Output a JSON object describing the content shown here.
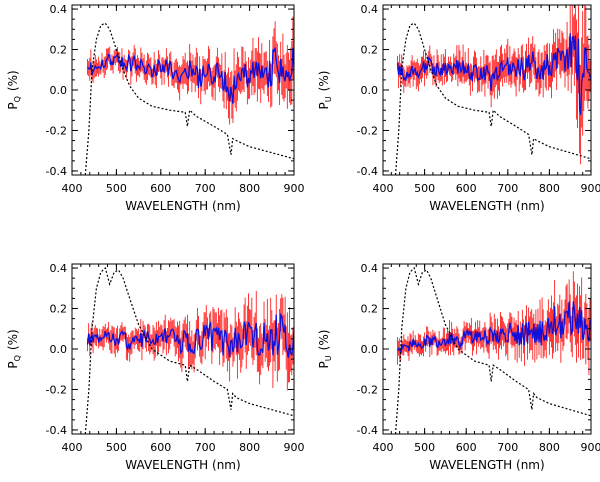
{
  "figure": {
    "panels": [
      {
        "id": "top-left",
        "ylabel_main": "P",
        "ylabel_sub": "Q",
        "ylabel_unit": "(%)",
        "xlabel": "WAVELENGTH (nm)"
      },
      {
        "id": "top-right",
        "ylabel_main": "P",
        "ylabel_sub": "U",
        "ylabel_unit": "(%)",
        "xlabel": "WAVELENGTH (nm)"
      },
      {
        "id": "bottom-left",
        "ylabel_main": "P",
        "ylabel_sub": "Q",
        "ylabel_unit": "(%)",
        "xlabel": "WAVELENGTH (nm)"
      },
      {
        "id": "bottom-right",
        "ylabel_main": "P",
        "ylabel_sub": "U",
        "ylabel_unit": "(%)",
        "xlabel": "WAVELENGTH (nm)"
      }
    ]
  },
  "colors": {
    "data_line": "#1010dd",
    "error_bars": "#ff2020",
    "filter_curve": "#000000",
    "axes": "#000000"
  },
  "chart_data": [
    {
      "type": "line",
      "panel": "top-left",
      "xlabel": "WAVELENGTH (nm)",
      "ylabel": "P_Q (%)",
      "xlim": [
        400,
        900
      ],
      "ylim": [
        -0.42,
        0.42
      ],
      "xticks": [
        400,
        500,
        600,
        700,
        800,
        900
      ],
      "yticks": [
        -0.4,
        -0.2,
        0.0,
        0.2,
        0.4
      ],
      "xtick_labels": [
        "400",
        "500",
        "600",
        "700",
        "800",
        "900"
      ],
      "ytick_labels": [
        "-0.4",
        "-0.2",
        "0.0",
        "0.2",
        "0.4"
      ],
      "grid": false,
      "series": [
        {
          "style": "line-with-errorbars",
          "x": [
            435,
            460,
            485,
            510,
            535,
            560,
            585,
            610,
            635,
            660,
            685,
            710,
            735,
            760,
            785,
            810,
            835,
            860,
            885,
            900
          ],
          "y": [
            0.1,
            0.13,
            0.15,
            0.14,
            0.13,
            0.12,
            0.1,
            0.12,
            0.08,
            0.1,
            0.06,
            0.09,
            0.07,
            0.0,
            0.05,
            0.12,
            0.07,
            0.13,
            0.1,
            0.12
          ],
          "yerr": [
            0.05,
            0.04,
            0.04,
            0.04,
            0.05,
            0.05,
            0.05,
            0.05,
            0.06,
            0.07,
            0.07,
            0.07,
            0.08,
            0.1,
            0.09,
            0.09,
            0.1,
            0.11,
            0.12,
            0.12
          ]
        },
        {
          "style": "dotted",
          "x": [
            430,
            438,
            445,
            455,
            465,
            475,
            485,
            500,
            515,
            530,
            550,
            580,
            620,
            655,
            660,
            665,
            680,
            720,
            750,
            758,
            762,
            770,
            800,
            850,
            900
          ],
          "y": [
            -0.42,
            -0.2,
            0.1,
            0.25,
            0.32,
            0.33,
            0.3,
            0.2,
            0.1,
            0.02,
            -0.04,
            -0.08,
            -0.1,
            -0.11,
            -0.18,
            -0.1,
            -0.13,
            -0.18,
            -0.22,
            -0.32,
            -0.24,
            -0.25,
            -0.28,
            -0.31,
            -0.34
          ]
        }
      ]
    },
    {
      "type": "line",
      "panel": "top-right",
      "xlabel": "WAVELENGTH (nm)",
      "ylabel": "P_U (%)",
      "xlim": [
        400,
        900
      ],
      "ylim": [
        -0.42,
        0.42
      ],
      "xticks": [
        400,
        500,
        600,
        700,
        800,
        900
      ],
      "yticks": [
        -0.4,
        -0.2,
        0.0,
        0.2,
        0.4
      ],
      "xtick_labels": [
        "400",
        "500",
        "600",
        "700",
        "800",
        "900"
      ],
      "ytick_labels": [
        "-0.4",
        "-0.2",
        "0.0",
        "0.2",
        "0.4"
      ],
      "grid": false,
      "series": [
        {
          "style": "line-with-errorbars",
          "x": [
            435,
            460,
            485,
            510,
            535,
            560,
            585,
            610,
            635,
            660,
            685,
            710,
            735,
            760,
            785,
            810,
            835,
            860,
            875,
            890,
            900
          ],
          "y": [
            0.1,
            0.08,
            0.1,
            0.12,
            0.09,
            0.1,
            0.11,
            0.08,
            0.1,
            0.05,
            0.09,
            0.12,
            0.1,
            0.13,
            0.11,
            0.14,
            0.15,
            0.25,
            0.05,
            0.15,
            0.12
          ],
          "yerr": [
            0.05,
            0.05,
            0.05,
            0.05,
            0.05,
            0.05,
            0.06,
            0.06,
            0.06,
            0.07,
            0.07,
            0.07,
            0.08,
            0.08,
            0.09,
            0.09,
            0.1,
            0.15,
            0.3,
            0.14,
            0.12
          ]
        },
        {
          "style": "dotted",
          "x": [
            430,
            438,
            445,
            455,
            465,
            475,
            485,
            500,
            515,
            530,
            550,
            580,
            620,
            655,
            660,
            665,
            680,
            720,
            750,
            758,
            762,
            770,
            800,
            850,
            900
          ],
          "y": [
            -0.42,
            -0.2,
            0.1,
            0.25,
            0.32,
            0.33,
            0.3,
            0.2,
            0.1,
            0.02,
            -0.04,
            -0.08,
            -0.1,
            -0.11,
            -0.18,
            -0.1,
            -0.13,
            -0.18,
            -0.22,
            -0.32,
            -0.24,
            -0.25,
            -0.28,
            -0.31,
            -0.34
          ]
        }
      ]
    },
    {
      "type": "line",
      "panel": "bottom-left",
      "xlabel": "WAVELENGTH (nm)",
      "ylabel": "P_Q (%)",
      "xlim": [
        400,
        900
      ],
      "ylim": [
        -0.42,
        0.42
      ],
      "xticks": [
        400,
        500,
        600,
        700,
        800,
        900
      ],
      "yticks": [
        -0.4,
        -0.2,
        0.0,
        0.2,
        0.4
      ],
      "xtick_labels": [
        "400",
        "500",
        "600",
        "700",
        "800",
        "900"
      ],
      "ytick_labels": [
        "-0.4",
        "-0.2",
        "0.0",
        "0.2",
        "0.4"
      ],
      "grid": false,
      "series": [
        {
          "style": "line-with-errorbars",
          "x": [
            435,
            460,
            485,
            510,
            535,
            560,
            585,
            610,
            635,
            660,
            685,
            710,
            735,
            760,
            785,
            810,
            835,
            860,
            885,
            900
          ],
          "y": [
            0.05,
            0.04,
            0.06,
            0.05,
            0.03,
            0.05,
            0.04,
            0.06,
            0.04,
            0.03,
            0.05,
            0.06,
            0.04,
            0.03,
            0.06,
            0.05,
            0.04,
            0.08,
            0.04,
            0.03
          ],
          "yerr": [
            0.05,
            0.04,
            0.05,
            0.05,
            0.05,
            0.05,
            0.06,
            0.06,
            0.07,
            0.08,
            0.08,
            0.09,
            0.09,
            0.1,
            0.1,
            0.12,
            0.12,
            0.13,
            0.14,
            0.12
          ]
        },
        {
          "style": "dotted",
          "x": [
            430,
            438,
            445,
            455,
            465,
            475,
            485,
            495,
            505,
            515,
            530,
            550,
            580,
            620,
            655,
            660,
            665,
            680,
            720,
            750,
            758,
            762,
            770,
            800,
            850,
            900
          ],
          "y": [
            -0.42,
            -0.2,
            0.1,
            0.3,
            0.38,
            0.4,
            0.32,
            0.38,
            0.39,
            0.35,
            0.25,
            0.12,
            0.0,
            -0.06,
            -0.08,
            -0.16,
            -0.08,
            -0.1,
            -0.16,
            -0.2,
            -0.3,
            -0.22,
            -0.24,
            -0.27,
            -0.3,
            -0.33
          ]
        }
      ]
    },
    {
      "type": "line",
      "panel": "bottom-right",
      "xlabel": "WAVELENGTH (nm)",
      "ylabel": "P_U (%)",
      "xlim": [
        400,
        900
      ],
      "ylim": [
        -0.42,
        0.42
      ],
      "xticks": [
        400,
        500,
        600,
        700,
        800,
        900
      ],
      "yticks": [
        -0.4,
        -0.2,
        0.0,
        0.2,
        0.4
      ],
      "xtick_labels": [
        "400",
        "500",
        "600",
        "700",
        "800",
        "900"
      ],
      "ytick_labels": [
        "-0.4",
        "-0.2",
        "0.0",
        "0.2",
        "0.4"
      ],
      "grid": false,
      "series": [
        {
          "style": "line-with-errorbars",
          "x": [
            435,
            460,
            485,
            510,
            535,
            560,
            585,
            610,
            635,
            660,
            685,
            710,
            735,
            760,
            785,
            810,
            835,
            860,
            885,
            900
          ],
          "y": [
            0.0,
            0.02,
            0.03,
            0.04,
            0.03,
            0.05,
            0.04,
            0.06,
            0.05,
            0.07,
            0.06,
            0.08,
            0.07,
            0.09,
            0.08,
            0.15,
            0.12,
            0.18,
            0.1,
            0.12
          ],
          "yerr": [
            0.05,
            0.04,
            0.04,
            0.04,
            0.04,
            0.05,
            0.05,
            0.05,
            0.05,
            0.06,
            0.06,
            0.07,
            0.07,
            0.08,
            0.09,
            0.1,
            0.1,
            0.12,
            0.13,
            0.12
          ]
        },
        {
          "style": "dotted",
          "x": [
            430,
            438,
            445,
            455,
            465,
            475,
            485,
            495,
            505,
            515,
            530,
            550,
            580,
            620,
            655,
            660,
            665,
            680,
            720,
            750,
            758,
            762,
            770,
            800,
            850,
            900
          ],
          "y": [
            -0.42,
            -0.2,
            0.1,
            0.3,
            0.38,
            0.4,
            0.32,
            0.38,
            0.39,
            0.35,
            0.25,
            0.12,
            0.0,
            -0.06,
            -0.08,
            -0.16,
            -0.08,
            -0.1,
            -0.16,
            -0.2,
            -0.3,
            -0.22,
            -0.24,
            -0.27,
            -0.3,
            -0.33
          ]
        }
      ]
    }
  ]
}
